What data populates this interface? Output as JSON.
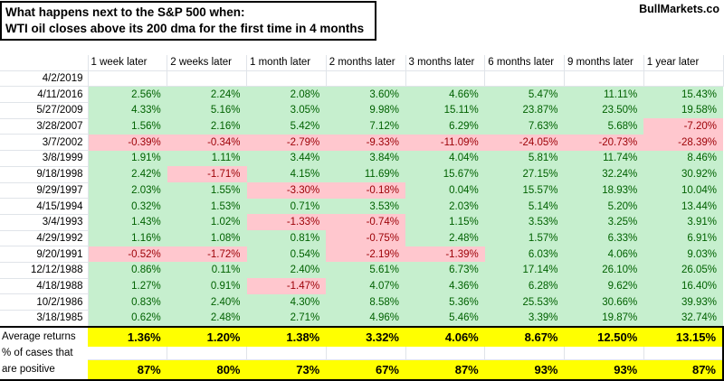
{
  "header": {
    "title_line1": "What happens next to the S&P 500 when:",
    "title_line2": "WTI oil closes above its 200 dma for the first time in 4 months",
    "brand": "BullMarkets.co"
  },
  "colors": {
    "positive_bg": "#c6efce",
    "positive_text": "#006100",
    "negative_bg": "#ffc7ce",
    "negative_text": "#9c0006",
    "highlight_bg": "#ffff00"
  },
  "chart_data": {
    "type": "table",
    "title": "What happens next to the S&P 500 when: WTI oil closes above its 200 dma for the first time in 4 months",
    "columns": [
      "1 week later",
      "2 weeks later",
      "1 month later",
      "2 months later",
      "3 months later",
      "6 months later",
      "9 months later",
      "1 year later"
    ],
    "rows": [
      {
        "date": "4/2/2019",
        "values": [
          "",
          "",
          "",
          "",
          "",
          "",
          "",
          ""
        ]
      },
      {
        "date": "4/11/2016",
        "values": [
          "2.56%",
          "2.24%",
          "2.08%",
          "3.60%",
          "4.66%",
          "5.47%",
          "11.11%",
          "15.43%"
        ]
      },
      {
        "date": "5/27/2009",
        "values": [
          "4.33%",
          "5.16%",
          "3.05%",
          "9.98%",
          "15.11%",
          "23.87%",
          "23.50%",
          "19.58%"
        ]
      },
      {
        "date": "3/28/2007",
        "values": [
          "1.56%",
          "2.16%",
          "5.42%",
          "7.12%",
          "6.29%",
          "7.63%",
          "5.68%",
          "-7.20%"
        ]
      },
      {
        "date": "3/7/2002",
        "values": [
          "-0.39%",
          "-0.34%",
          "-2.79%",
          "-9.33%",
          "-11.09%",
          "-24.05%",
          "-20.73%",
          "-28.39%"
        ]
      },
      {
        "date": "3/8/1999",
        "values": [
          "1.91%",
          "1.11%",
          "3.44%",
          "3.84%",
          "4.04%",
          "5.81%",
          "11.74%",
          "8.46%"
        ]
      },
      {
        "date": "9/18/1998",
        "values": [
          "2.42%",
          "-1.71%",
          "4.15%",
          "11.69%",
          "15.67%",
          "27.15%",
          "32.24%",
          "30.92%"
        ]
      },
      {
        "date": "9/29/1997",
        "values": [
          "2.03%",
          "1.55%",
          "-3.30%",
          "-0.18%",
          "0.04%",
          "15.57%",
          "18.93%",
          "10.04%"
        ]
      },
      {
        "date": "4/15/1994",
        "values": [
          "0.32%",
          "1.53%",
          "0.71%",
          "3.53%",
          "2.03%",
          "5.14%",
          "5.20%",
          "13.44%"
        ]
      },
      {
        "date": "3/4/1993",
        "values": [
          "1.43%",
          "1.02%",
          "-1.33%",
          "-0.74%",
          "1.15%",
          "3.53%",
          "3.25%",
          "3.91%"
        ]
      },
      {
        "date": "4/29/1992",
        "values": [
          "1.16%",
          "1.08%",
          "0.81%",
          "-0.75%",
          "2.48%",
          "1.57%",
          "6.33%",
          "6.91%"
        ]
      },
      {
        "date": "9/20/1991",
        "values": [
          "-0.52%",
          "-1.72%",
          "0.54%",
          "-2.19%",
          "-1.39%",
          "6.03%",
          "4.06%",
          "9.03%"
        ]
      },
      {
        "date": "12/12/1988",
        "values": [
          "0.86%",
          "0.11%",
          "2.40%",
          "5.61%",
          "6.73%",
          "17.14%",
          "26.10%",
          "26.05%"
        ]
      },
      {
        "date": "4/18/1988",
        "values": [
          "1.27%",
          "0.91%",
          "-1.47%",
          "4.07%",
          "4.36%",
          "6.28%",
          "9.62%",
          "16.40%"
        ]
      },
      {
        "date": "10/2/1986",
        "values": [
          "0.83%",
          "2.40%",
          "4.30%",
          "8.58%",
          "5.36%",
          "25.53%",
          "30.66%",
          "39.93%"
        ]
      },
      {
        "date": "3/18/1985",
        "values": [
          "0.62%",
          "2.48%",
          "2.71%",
          "4.96%",
          "5.46%",
          "3.39%",
          "19.87%",
          "32.74%"
        ]
      }
    ],
    "summary": {
      "average_label": "Average returns",
      "average_values": [
        "1.36%",
        "1.20%",
        "1.38%",
        "3.32%",
        "4.06%",
        "8.67%",
        "12.50%",
        "13.15%"
      ],
      "pct_label_line1": "% of cases that",
      "pct_label_line2": "are positive",
      "pct_values": [
        "87%",
        "80%",
        "73%",
        "67%",
        "87%",
        "93%",
        "93%",
        "87%"
      ]
    }
  }
}
